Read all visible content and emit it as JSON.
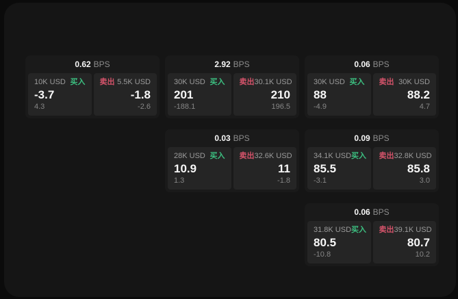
{
  "theme": {
    "page_bg": "#0b0b0b",
    "window_bg": "#151515",
    "card_bg": "#1a1a1a",
    "panel_bg": "#252525",
    "text_white": "#f7f7f7",
    "text_gray": "#9b9b9b",
    "text_sub": "#868686",
    "buy_green": "#3cbf80",
    "sell_red": "#d4536a"
  },
  "labels": {
    "buy": "买入",
    "sell": "卖出",
    "bps_unit": "BPS"
  },
  "cards": [
    {
      "row": 1,
      "col": 1,
      "bps": "0.62",
      "buy": {
        "size": "10K USD",
        "price": "-3.7",
        "delta": "4.3"
      },
      "sell": {
        "size": "5.5K USD",
        "price": "-1.8",
        "delta": "-2.6"
      }
    },
    {
      "row": 1,
      "col": 2,
      "bps": "2.92",
      "buy": {
        "size": "30K USD",
        "price": "201",
        "delta": "-188.1"
      },
      "sell": {
        "size": "30.1K USD",
        "price": "210",
        "delta": "196.5"
      }
    },
    {
      "row": 1,
      "col": 3,
      "bps": "0.06",
      "buy": {
        "size": "30K USD",
        "price": "88",
        "delta": "-4.9"
      },
      "sell": {
        "size": "30K USD",
        "price": "88.2",
        "delta": "4.7"
      }
    },
    {
      "row": 2,
      "col": 2,
      "bps": "0.03",
      "buy": {
        "size": "28K USD",
        "price": "10.9",
        "delta": "1.3"
      },
      "sell": {
        "size": "32.6K USD",
        "price": "11",
        "delta": "-1.8"
      }
    },
    {
      "row": 2,
      "col": 3,
      "bps": "0.09",
      "buy": {
        "size": "34.1K USD",
        "price": "85.5",
        "delta": "-3.1"
      },
      "sell": {
        "size": "32.8K USD",
        "price": "85.8",
        "delta": "3.0"
      }
    },
    {
      "row": 3,
      "col": 3,
      "bps": "0.06",
      "buy": {
        "size": "31.8K USD",
        "price": "80.5",
        "delta": "-10.8"
      },
      "sell": {
        "size": "39.1K USD",
        "price": "80.7",
        "delta": "10.2"
      }
    }
  ]
}
